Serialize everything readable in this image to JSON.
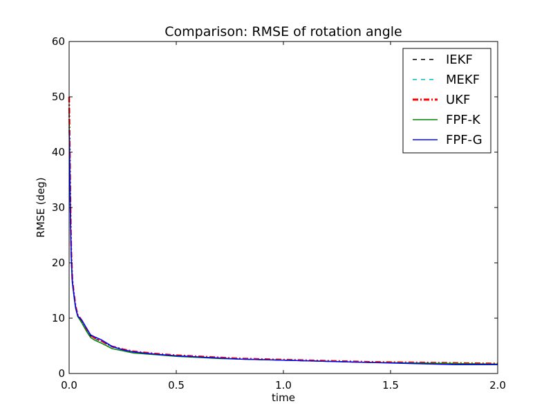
{
  "chart_data": {
    "type": "line",
    "title": "Comparison: RMSE of rotation angle",
    "xlabel": "time",
    "ylabel": "RMSE (deg)",
    "xlim": [
      0,
      2.0
    ],
    "ylim": [
      0,
      60
    ],
    "x_ticks": [
      "0.0",
      "0.5",
      "1.0",
      "1.5",
      "2.0"
    ],
    "y_ticks": [
      "0",
      "10",
      "20",
      "30",
      "40",
      "50",
      "60"
    ],
    "legend_position": "top-right",
    "x": [
      0.0,
      0.003,
      0.006,
      0.01,
      0.015,
      0.02,
      0.03,
      0.04,
      0.05,
      0.06,
      0.08,
      0.1,
      0.12,
      0.15,
      0.18,
      0.2,
      0.25,
      0.3,
      0.4,
      0.5,
      0.6,
      0.7,
      0.8,
      0.9,
      1.0,
      1.2,
      1.4,
      1.6,
      1.8,
      2.0
    ],
    "series": [
      {
        "name": "IEKF",
        "color": "#000000",
        "style": "dashed",
        "values": [
          47,
          40,
          30,
          22,
          17,
          15,
          12,
          10.5,
          10,
          9.5,
          8,
          6.8,
          6.3,
          5.8,
          5.2,
          4.8,
          4.3,
          3.9,
          3.5,
          3.2,
          3.0,
          2.8,
          2.6,
          2.5,
          2.4,
          2.2,
          2.0,
          1.9,
          1.8,
          1.7
        ]
      },
      {
        "name": "MEKF",
        "color": "#00bfbf",
        "style": "dashed",
        "values": [
          46,
          39,
          29,
          21.5,
          16.8,
          15,
          12,
          10.5,
          10,
          9.4,
          8,
          6.8,
          6.3,
          5.8,
          5.2,
          4.8,
          4.3,
          3.9,
          3.5,
          3.2,
          3.0,
          2.8,
          2.6,
          2.5,
          2.4,
          2.2,
          2.0,
          1.9,
          1.8,
          1.7
        ]
      },
      {
        "name": "UKF",
        "color": "#ff0000",
        "style": "dashdot",
        "values": [
          50,
          41,
          31,
          22,
          17,
          15.2,
          12.2,
          10.6,
          10.1,
          9.5,
          8.1,
          6.9,
          6.4,
          5.9,
          5.3,
          4.9,
          4.4,
          4.0,
          3.6,
          3.3,
          3.1,
          2.9,
          2.7,
          2.6,
          2.5,
          2.3,
          2.1,
          2.0,
          1.9,
          1.8
        ]
      },
      {
        "name": "FPF-K",
        "color": "#008000",
        "style": "solid",
        "values": [
          45,
          38,
          28,
          21,
          16.5,
          14.8,
          11.8,
          10.3,
          9.7,
          9.1,
          7.7,
          6.5,
          6.0,
          5.5,
          4.9,
          4.5,
          4.1,
          3.7,
          3.4,
          3.1,
          2.9,
          2.7,
          2.6,
          2.5,
          2.4,
          2.2,
          2.0,
          1.9,
          1.8,
          1.7
        ]
      },
      {
        "name": "FPF-G",
        "color": "#0000ff",
        "style": "solid",
        "values": [
          44,
          38,
          28,
          21,
          16.5,
          15,
          12,
          10.4,
          10,
          9.6,
          8.3,
          7.0,
          6.6,
          6.1,
          5.4,
          4.9,
          4.3,
          3.9,
          3.5,
          3.2,
          3.0,
          2.8,
          2.6,
          2.5,
          2.4,
          2.2,
          2.0,
          1.8,
          1.6,
          1.6
        ]
      }
    ]
  }
}
